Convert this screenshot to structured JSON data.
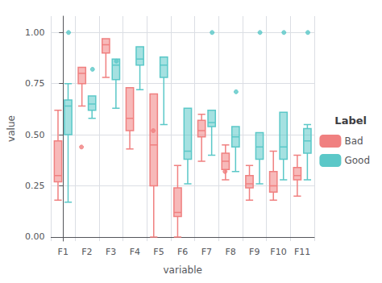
{
  "chart_data": {
    "type": "boxplot",
    "xlabel": "variable",
    "ylabel": "value",
    "legend_title": "Label",
    "legend": "right",
    "grid": true,
    "categories": [
      "F1",
      "F2",
      "F3",
      "F4",
      "F5",
      "F6",
      "F7",
      "F8",
      "F9",
      "F10",
      "F11"
    ],
    "ylim": [
      -0.02,
      1.08
    ],
    "yticks": [
      {
        "value": 0.0,
        "label": "0.00"
      },
      {
        "value": 0.25,
        "label": "0.25"
      },
      {
        "value": 0.5,
        "label": "0.50"
      },
      {
        "value": 0.75,
        "label": "0.75"
      },
      {
        "value": 1.0,
        "label": "1.00"
      }
    ],
    "series": [
      {
        "name": "Bad",
        "color": "#F08080",
        "values": [
          {
            "q1": 0.27,
            "median": 0.3,
            "q3": 0.47,
            "whislo": 0.18,
            "whishi": 0.62,
            "fliers": []
          },
          {
            "q1": 0.75,
            "median": 0.8,
            "q3": 0.83,
            "whislo": 0.64,
            "whishi": 0.83,
            "fliers": [
              0.44
            ]
          },
          {
            "q1": 0.9,
            "median": 0.94,
            "q3": 0.97,
            "whislo": 0.78,
            "whishi": 0.97,
            "fliers": []
          },
          {
            "q1": 0.52,
            "median": 0.58,
            "q3": 0.73,
            "whislo": 0.43,
            "whishi": 0.73,
            "fliers": []
          },
          {
            "q1": 0.25,
            "median": 0.45,
            "q3": 0.7,
            "whislo": 0.0,
            "whishi": 0.7,
            "fliers": [
              0.52
            ]
          },
          {
            "q1": 0.1,
            "median": 0.12,
            "q3": 0.24,
            "whislo": 0.0,
            "whishi": 0.35,
            "fliers": []
          },
          {
            "q1": 0.49,
            "median": 0.52,
            "q3": 0.57,
            "whislo": 0.37,
            "whishi": 0.6,
            "fliers": []
          },
          {
            "q1": 0.33,
            "median": 0.37,
            "q3": 0.41,
            "whislo": 0.28,
            "whishi": 0.45,
            "fliers": [
              0.32
            ]
          },
          {
            "q1": 0.24,
            "median": 0.26,
            "q3": 0.3,
            "whislo": 0.18,
            "whishi": 0.35,
            "fliers": []
          },
          {
            "q1": 0.22,
            "median": 0.25,
            "q3": 0.32,
            "whislo": 0.18,
            "whishi": 0.42,
            "fliers": []
          },
          {
            "q1": 0.28,
            "median": 0.3,
            "q3": 0.34,
            "whislo": 0.2,
            "whishi": 0.4,
            "fliers": []
          }
        ]
      },
      {
        "name": "Good",
        "color": "#5BC8C8",
        "values": [
          {
            "q1": 0.5,
            "median": 0.64,
            "q3": 0.67,
            "whislo": 0.17,
            "whishi": 0.75,
            "fliers": [
              1.0
            ]
          },
          {
            "q1": 0.62,
            "median": 0.65,
            "q3": 0.69,
            "whislo": 0.58,
            "whishi": 0.69,
            "fliers": [
              0.82
            ]
          },
          {
            "q1": 0.77,
            "median": 0.84,
            "q3": 0.87,
            "whislo": 0.63,
            "whishi": 0.87,
            "fliers": [
              0.86
            ]
          },
          {
            "q1": 0.84,
            "median": 0.87,
            "q3": 0.93,
            "whislo": 0.72,
            "whishi": 0.93,
            "fliers": []
          },
          {
            "q1": 0.78,
            "median": 0.84,
            "q3": 0.88,
            "whislo": 0.55,
            "whishi": 0.88,
            "fliers": []
          },
          {
            "q1": 0.38,
            "median": 0.42,
            "q3": 0.63,
            "whislo": 0.26,
            "whishi": 0.63,
            "fliers": []
          },
          {
            "q1": 0.54,
            "median": 0.56,
            "q3": 0.62,
            "whislo": 0.4,
            "whishi": 0.62,
            "fliers": [
              1.0
            ]
          },
          {
            "q1": 0.44,
            "median": 0.49,
            "q3": 0.54,
            "whislo": 0.32,
            "whishi": 0.54,
            "fliers": [
              0.71
            ]
          },
          {
            "q1": 0.38,
            "median": 0.44,
            "q3": 0.51,
            "whislo": 0.26,
            "whishi": 0.51,
            "fliers": [
              1.0
            ]
          },
          {
            "q1": 0.38,
            "median": 0.44,
            "q3": 0.61,
            "whislo": 0.28,
            "whishi": 0.61,
            "fliers": [
              1.0
            ]
          },
          {
            "q1": 0.41,
            "median": 0.47,
            "q3": 0.53,
            "whislo": 0.28,
            "whishi": 0.55,
            "fliers": [
              1.0
            ]
          }
        ]
      }
    ]
  }
}
